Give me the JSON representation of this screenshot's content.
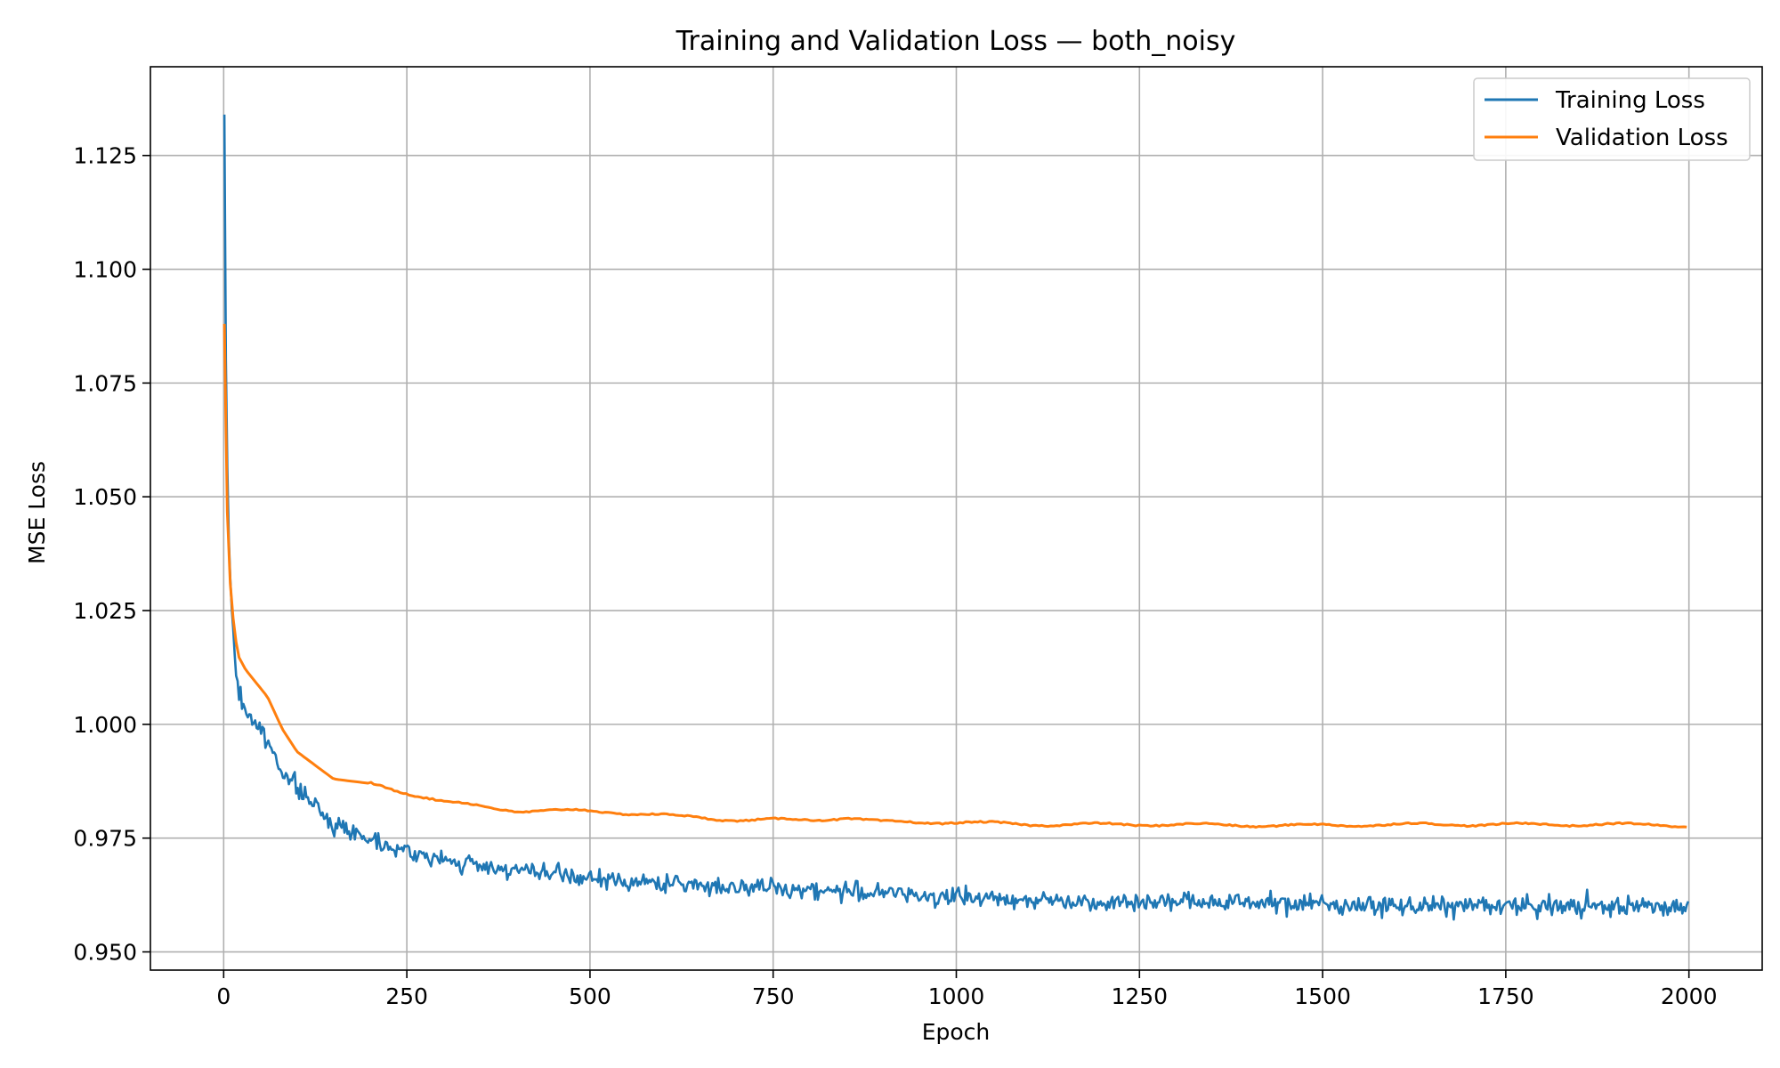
{
  "chart_data": {
    "type": "line",
    "title": "Training and Validation Loss — both_noisy",
    "xlabel": "Epoch",
    "ylabel": "MSE Loss",
    "xlim": [
      -100,
      2100
    ],
    "ylim": [
      0.946,
      1.1445
    ],
    "xticks": [
      0,
      250,
      500,
      750,
      1000,
      1250,
      1500,
      1750,
      2000
    ],
    "xtick_labels": [
      "0",
      "250",
      "500",
      "750",
      "1000",
      "1250",
      "1500",
      "1750",
      "2000"
    ],
    "yticks": [
      0.95,
      0.975,
      1.0,
      1.025,
      1.05,
      1.075,
      1.1,
      1.125
    ],
    "ytick_labels": [
      "0.950",
      "0.975",
      "1.000",
      "1.025",
      "1.050",
      "1.075",
      "1.100",
      "1.125"
    ],
    "grid": true,
    "legend": "top-right",
    "series": [
      {
        "name": "Training Loss",
        "color": "#1f77b4",
        "noisy": true,
        "x": [
          1,
          3,
          6,
          10,
          15,
          20,
          30,
          45,
          60,
          80,
          100,
          125,
          150,
          200,
          250,
          300,
          400,
          500,
          600,
          750,
          900,
          1000,
          1200,
          1400,
          1600,
          1800,
          2000
        ],
        "values": [
          1.134,
          1.08,
          1.045,
          1.028,
          1.015,
          1.007,
          1.003,
          1.0,
          0.996,
          0.99,
          0.986,
          0.982,
          0.978,
          0.975,
          0.972,
          0.97,
          0.968,
          0.966,
          0.965,
          0.964,
          0.963,
          0.962,
          0.961,
          0.961,
          0.96,
          0.96,
          0.96
        ]
      },
      {
        "name": "Validation Loss",
        "color": "#ff7f0e",
        "noisy": false,
        "x": [
          1,
          3,
          6,
          10,
          15,
          20,
          30,
          45,
          60,
          80,
          100,
          125,
          150,
          200,
          250,
          300,
          400,
          500,
          600,
          700,
          800,
          850,
          900,
          1000,
          1100,
          1200,
          1300,
          1400,
          1500,
          1600,
          1700,
          1800,
          1900,
          2000
        ],
        "values": [
          1.088,
          1.06,
          1.04,
          1.028,
          1.02,
          1.015,
          1.012,
          1.009,
          1.006,
          0.999,
          0.994,
          0.991,
          0.988,
          0.987,
          0.985,
          0.983,
          0.981,
          0.981,
          0.98,
          0.979,
          0.979,
          0.9795,
          0.9785,
          0.9785,
          0.978,
          0.978,
          0.978,
          0.9778,
          0.9778,
          0.978,
          0.978,
          0.978,
          0.978,
          0.9778
        ]
      }
    ]
  }
}
